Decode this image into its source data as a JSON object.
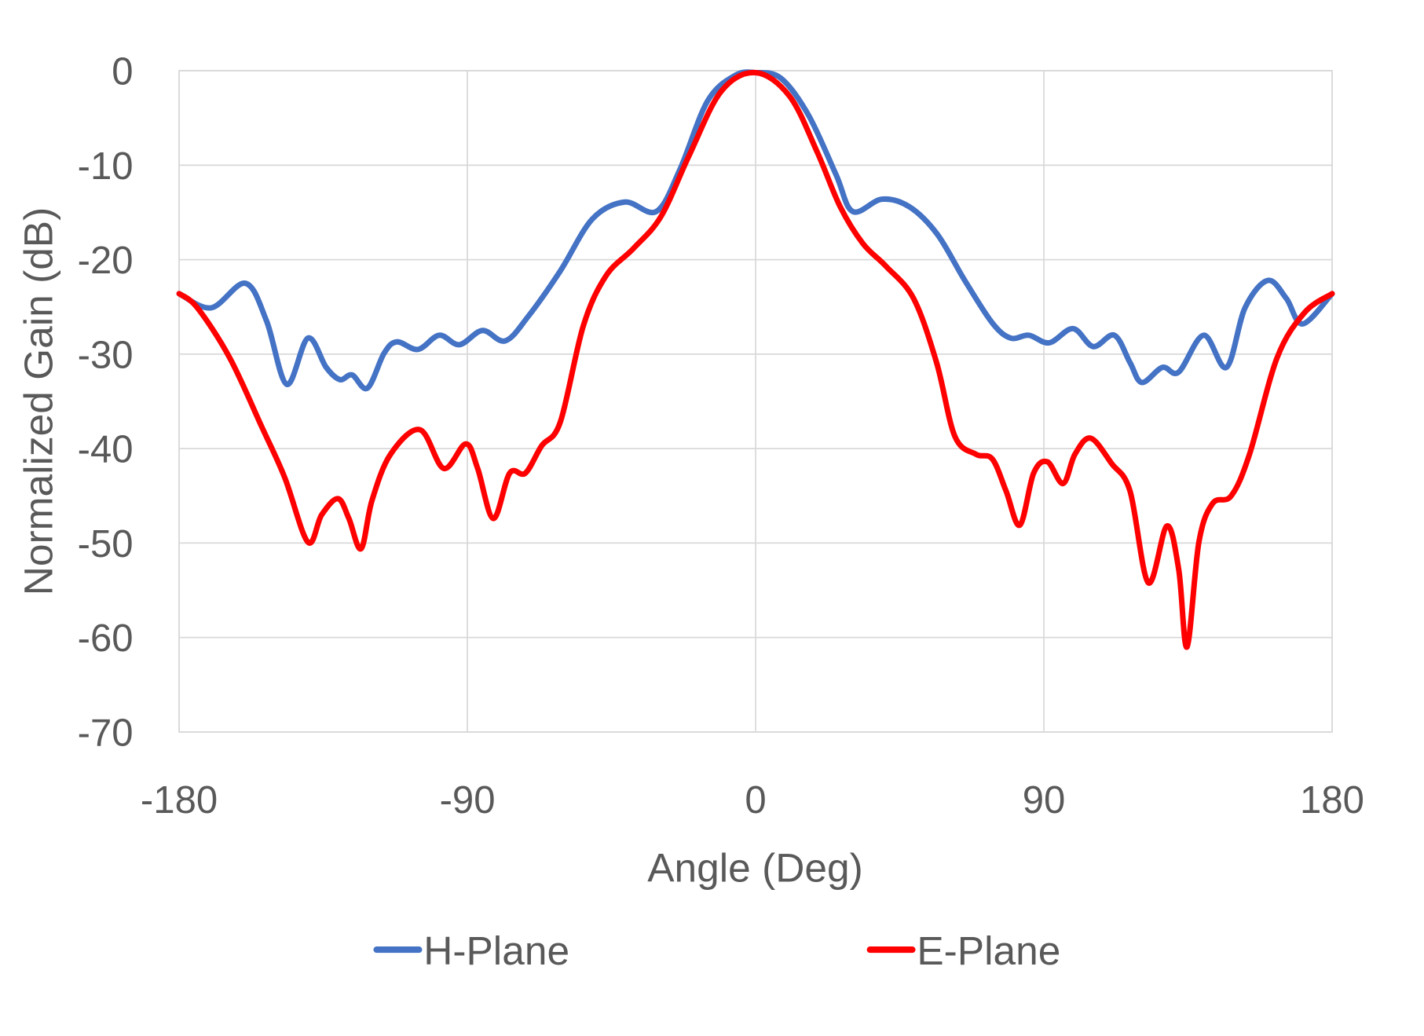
{
  "chart_data": {
    "type": "line",
    "title": "",
    "xlabel": "Angle (Deg)",
    "ylabel": "Normalized Gain (dB)",
    "xlim": [
      -180,
      180
    ],
    "ylim": [
      -70,
      0
    ],
    "xticks": [
      -180,
      -90,
      0,
      90,
      180
    ],
    "yticks": [
      0,
      -10,
      -20,
      -30,
      -40,
      -50,
      -60,
      -70
    ],
    "xtick_labels": [
      "-180",
      "-90",
      "0",
      "90",
      "180"
    ],
    "ytick_labels": [
      "0",
      "-10",
      "-20",
      "-30",
      "-40",
      "-50",
      "-60",
      "-70"
    ],
    "grid": true,
    "legend_position": "bottom",
    "series": [
      {
        "name": "H-Plane",
        "color": "#4472C4",
        "points": [
          [
            -180,
            -23.6
          ],
          [
            -170,
            -25.1
          ],
          [
            -159.3,
            -22.5
          ],
          [
            -152.7,
            -26.5
          ],
          [
            -146.4,
            -33.2
          ],
          [
            -139.8,
            -28.3
          ],
          [
            -134.1,
            -31.4
          ],
          [
            -129.8,
            -32.7
          ],
          [
            -126,
            -32.2
          ],
          [
            -121.2,
            -33.6
          ],
          [
            -116,
            -29.9
          ],
          [
            -112,
            -28.7
          ],
          [
            -105.4,
            -29.5
          ],
          [
            -98.8,
            -28
          ],
          [
            -92.5,
            -29
          ],
          [
            -85.3,
            -27.5
          ],
          [
            -78.2,
            -28.6
          ],
          [
            -71,
            -26
          ],
          [
            -61,
            -21.2
          ],
          [
            -51,
            -15.7
          ],
          [
            -40.9,
            -13.9
          ],
          [
            -31,
            -14.9
          ],
          [
            -23.7,
            -10.5
          ],
          [
            -15,
            -3.2
          ],
          [
            -6.4,
            -0.5
          ],
          [
            0,
            -0.2
          ],
          [
            7.9,
            -0.8
          ],
          [
            16.5,
            -4.7
          ],
          [
            25.1,
            -11
          ],
          [
            30.3,
            -14.9
          ],
          [
            39.4,
            -13.6
          ],
          [
            48,
            -14.4
          ],
          [
            56.7,
            -17.3
          ],
          [
            65.3,
            -22.2
          ],
          [
            73.9,
            -26.7
          ],
          [
            79.6,
            -28.3
          ],
          [
            85.3,
            -28
          ],
          [
            91.7,
            -28.8
          ],
          [
            99.1,
            -27.3
          ],
          [
            105.4,
            -29.2
          ],
          [
            112,
            -28
          ],
          [
            116.9,
            -30.9
          ],
          [
            120.6,
            -33
          ],
          [
            127,
            -31.4
          ],
          [
            132.1,
            -31.9
          ],
          [
            139.9,
            -28
          ],
          [
            147,
            -31.4
          ],
          [
            152.8,
            -25.1
          ],
          [
            159.9,
            -22.2
          ],
          [
            165.7,
            -24.1
          ],
          [
            170.8,
            -26.8
          ],
          [
            180,
            -23.6
          ]
        ]
      },
      {
        "name": "E-Plane",
        "color": "#FF0000",
        "points": [
          [
            -180,
            -23.6
          ],
          [
            -174.3,
            -25.1
          ],
          [
            -164.2,
            -30.4
          ],
          [
            -154.2,
            -37.7
          ],
          [
            -147,
            -43.1
          ],
          [
            -139.8,
            -49.9
          ],
          [
            -135.5,
            -47
          ],
          [
            -130.4,
            -45.3
          ],
          [
            -127,
            -47.4
          ],
          [
            -123.2,
            -50.6
          ],
          [
            -119.8,
            -45.5
          ],
          [
            -114,
            -40.6
          ],
          [
            -104.8,
            -38
          ],
          [
            -97.4,
            -42.1
          ],
          [
            -90.5,
            -39.5
          ],
          [
            -86.8,
            -42.1
          ],
          [
            -81.9,
            -47.4
          ],
          [
            -76.8,
            -42.6
          ],
          [
            -71.9,
            -42.6
          ],
          [
            -66.8,
            -39.7
          ],
          [
            -61,
            -37.2
          ],
          [
            -53.8,
            -27
          ],
          [
            -46.7,
            -21.7
          ],
          [
            -38.1,
            -18.8
          ],
          [
            -29.5,
            -15.4
          ],
          [
            -20.8,
            -9
          ],
          [
            -10.8,
            -2.2
          ],
          [
            0,
            -0.2
          ],
          [
            10.6,
            -2.7
          ],
          [
            19.2,
            -8.6
          ],
          [
            26.4,
            -14.4
          ],
          [
            33.5,
            -18.3
          ],
          [
            40.7,
            -20.7
          ],
          [
            49.3,
            -24.1
          ],
          [
            56.5,
            -30.9
          ],
          [
            62.2,
            -38.7
          ],
          [
            68.8,
            -40.6
          ],
          [
            73.9,
            -41.1
          ],
          [
            78.2,
            -44.5
          ],
          [
            82.5,
            -48.1
          ],
          [
            86.8,
            -42.6
          ],
          [
            91.1,
            -41.4
          ],
          [
            96,
            -43.7
          ],
          [
            99.7,
            -40.6
          ],
          [
            104.6,
            -38.9
          ],
          [
            111.2,
            -41.6
          ],
          [
            116.9,
            -44.5
          ],
          [
            122.6,
            -54.2
          ],
          [
            128.4,
            -48.2
          ],
          [
            132.1,
            -52.8
          ],
          [
            134.7,
            -61
          ],
          [
            138.4,
            -49.9
          ],
          [
            142.7,
            -45.8
          ],
          [
            148.5,
            -45
          ],
          [
            154.2,
            -40.6
          ],
          [
            162.8,
            -30.4
          ],
          [
            171.4,
            -25.6
          ],
          [
            180,
            -23.6
          ]
        ]
      }
    ]
  }
}
